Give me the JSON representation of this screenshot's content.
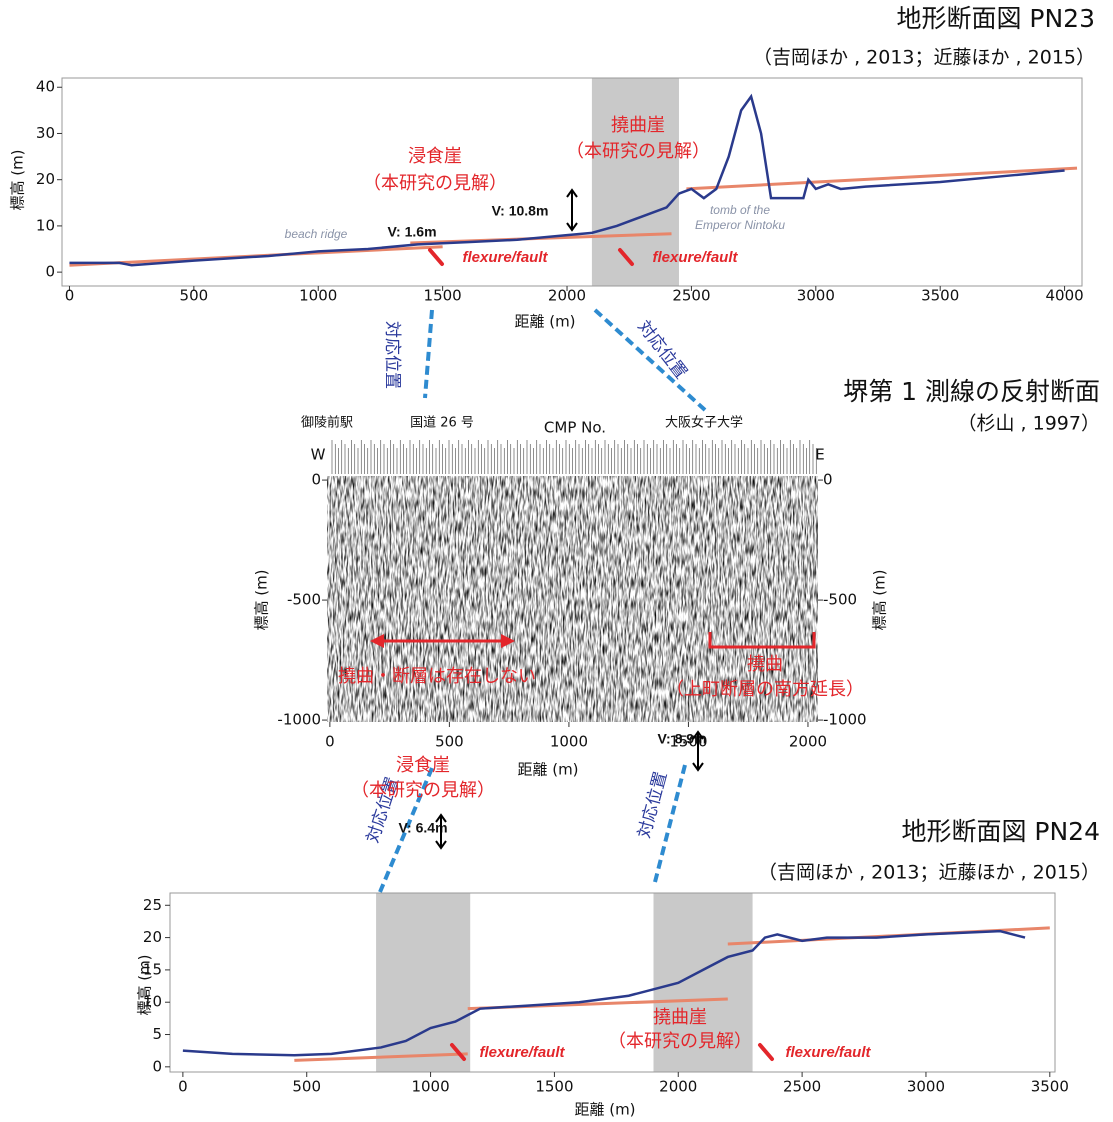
{
  "connectors": [
    "対応位置",
    "対応位置",
    "対応位置",
    "対応位置"
  ],
  "chart_data": [
    {
      "type": "line",
      "title": "地形断面図 PN23",
      "subtitle": "（吉岡ほか , 2013；近藤ほか , 2015）",
      "xlabel": "距離 (m)",
      "ylabel": "標高 (m)",
      "xlim": [
        -30,
        4070
      ],
      "ylim": [
        -3,
        42
      ],
      "xticks": [
        0,
        500,
        1000,
        1500,
        2000,
        2500,
        3000,
        3500,
        4000
      ],
      "yticks": [
        0,
        10,
        20,
        30,
        40
      ],
      "x": [
        0,
        200,
        250,
        500,
        800,
        1000,
        1200,
        1400,
        1600,
        1800,
        2000,
        2100,
        2200,
        2300,
        2400,
        2450,
        2500,
        2550,
        2600,
        2650,
        2700,
        2740,
        2780,
        2820,
        2950,
        2970,
        3000,
        3050,
        3100,
        3200,
        3500,
        3800,
        4000
      ],
      "series": [
        {
          "color": "#2a3a8c",
          "values": [
            2,
            2,
            1.5,
            2.5,
            3.5,
            4.5,
            5,
            6,
            6.5,
            7,
            8,
            8.5,
            10,
            12,
            14,
            17,
            18,
            16,
            18,
            25,
            35,
            38,
            30,
            16,
            16,
            20,
            18,
            19,
            18,
            18.5,
            19.5,
            21,
            22
          ]
        }
      ],
      "fit_lines": [
        {
          "x": [
            0,
            1500
          ],
          "y": [
            1.5,
            5.5
          ]
        },
        {
          "x": [
            1370,
            2420
          ],
          "y": [
            6.3,
            8.3
          ]
        },
        {
          "x": [
            2480,
            4050
          ],
          "y": [
            18,
            22.5
          ]
        }
      ],
      "shaded_x": [
        [
          2100,
          2450
        ]
      ],
      "annotations": [
        "浸食崖",
        "（本研究の見解）",
        "撓曲崖",
        "（本研究の見解）",
        "V: 10.8m",
        "V: 1.6m",
        "beach ridge",
        "tomb of the",
        "Emperor Nintoku",
        "flexure/fault",
        "flexure/fault"
      ]
    },
    {
      "type": "seismic",
      "title": "堺第 1 測線の反射断面",
      "subtitle": "（杉山 , 1997）",
      "xlabel": "距離 (m)",
      "ylabel": "標高 (m)",
      "xlim": [
        -12,
        2042
      ],
      "ylim": [
        -1008,
        17
      ],
      "xticks": [
        0,
        500,
        1000,
        1500,
        2000
      ],
      "yticks": [
        0,
        -500,
        -1000
      ],
      "annotations": [
        "御陵前駅",
        "国道 26 号",
        "CMP No.",
        "大阪女子大学",
        "W",
        "E",
        "撓曲・断層は存在しない",
        "撓曲",
        "（上町断層の南方延長）"
      ]
    },
    {
      "type": "line",
      "title": "地形断面図 PN24",
      "subtitle": "（吉岡ほか , 2013；近藤ほか , 2015）",
      "xlabel": "距離 (m)",
      "ylabel": "標高 (m)",
      "xlim": [
        -52,
        3521
      ],
      "ylim": [
        -0.8,
        26.9
      ],
      "xticks": [
        0,
        500,
        1000,
        1500,
        2000,
        2500,
        3000,
        3500
      ],
      "yticks": [
        0,
        5,
        10,
        15,
        20,
        25
      ],
      "x": [
        0,
        200,
        450,
        600,
        800,
        900,
        1000,
        1100,
        1150,
        1200,
        1400,
        1600,
        1800,
        1900,
        2000,
        2100,
        2200,
        2300,
        2350,
        2400,
        2500,
        2600,
        2800,
        3000,
        3300,
        3400
      ],
      "series": [
        {
          "color": "#2a3a8c",
          "values": [
            2.5,
            2,
            1.8,
            2,
            3,
            4,
            6,
            7,
            8,
            9,
            9.5,
            10,
            11,
            12,
            13,
            15,
            17,
            18,
            20,
            20.5,
            19.5,
            20,
            20,
            20.5,
            21,
            20
          ]
        }
      ],
      "fit_lines": [
        {
          "x": [
            450,
            1150
          ],
          "y": [
            1,
            2
          ]
        },
        {
          "x": [
            1150,
            2200
          ],
          "y": [
            9,
            10.5
          ]
        },
        {
          "x": [
            2200,
            3500
          ],
          "y": [
            19,
            21.5
          ]
        }
      ],
      "shaded_x": [
        [
          780,
          1160
        ],
        [
          1900,
          2300
        ]
      ],
      "annotations": [
        "浸食崖",
        "（本研究の見解）",
        "V: 6.4m",
        "flexure/fault",
        "V: 8.9m",
        "撓曲崖",
        "（本研究の見解）",
        "flexure/fault"
      ]
    }
  ]
}
